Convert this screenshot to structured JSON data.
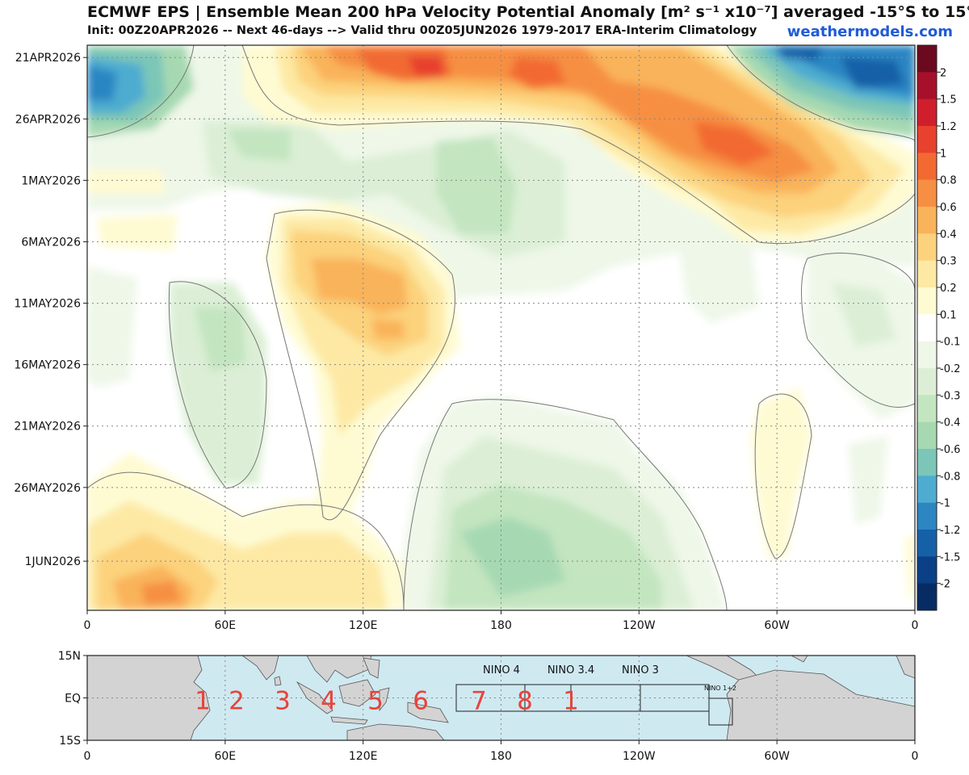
{
  "header": {
    "title": "ECMWF EPS | Ensemble Mean 200 hPa Velocity Potential Anomaly [m² s⁻¹ x10⁻⁷] averaged -15°S to 15°N",
    "subtitle": "Init: 00Z20APR2026 -- Next 46-days --> Valid thru 00Z05JUN2026 1979-2017 ERA-Interim Climatology",
    "site": "weathermodels.com"
  },
  "chart_data": [
    {
      "type": "heatmap",
      "title": "ECMWF EPS | Ensemble Mean 200 hPa Velocity Potential Anomaly [m² s⁻¹ x10⁻⁷] averaged -15°S to 15°N",
      "subtitle": "Init: 00Z20APR2026 -- Next 46-days --> Valid thru 00Z05JUN2026 1979-2017 ERA-Interim Climatology",
      "x_axis": {
        "ticks": [
          "0",
          "60E",
          "120E",
          "180",
          "120W",
          "60W",
          "0"
        ],
        "lon_values": [
          0,
          60,
          120,
          180,
          240,
          300,
          360
        ],
        "range": [
          0,
          360
        ]
      },
      "y_axis": {
        "ticks": [
          "21APR2026",
          "26APR2026",
          "1MAY2026",
          "6MAY2026",
          "11MAY2026",
          "16MAY2026",
          "21MAY2026",
          "26MAY2026",
          "1JUN2026"
        ],
        "dates": [
          "2026-04-21",
          "2026-04-26",
          "2026-05-01",
          "2026-05-06",
          "2026-05-11",
          "2026-05-16",
          "2026-05-21",
          "2026-05-26",
          "2026-06-01"
        ],
        "range": [
          "2026-04-20",
          "2026-06-05"
        ],
        "direction": "time increases downward"
      },
      "grid": true,
      "colorbar": {
        "labels": [
          "2",
          "1.5",
          "1.2",
          "1",
          "0.8",
          "0.6",
          "0.4",
          "0.3",
          "0.2",
          "0.1",
          "-0.1",
          "-0.2",
          "-0.3",
          "-0.4",
          "-0.6",
          "-0.8",
          "-1",
          "-1.2",
          "-1.5",
          "-2"
        ],
        "colors": [
          "#6b0a1f",
          "#a6102a",
          "#cf1f2c",
          "#e8412d",
          "#f26a32",
          "#f68f43",
          "#f9b35a",
          "#fcd27c",
          "#fde9a4",
          "#fefbd3",
          "#ffffff",
          "#eef7e8",
          "#dcefd6",
          "#c3e5c0",
          "#a6d9b2",
          "#7cc6b8",
          "#4eacd0",
          "#2b86c2",
          "#1660a8",
          "#0b3f86",
          "#072b63"
        ]
      },
      "features": [
        {
          "name": "positive anomaly",
          "lon_range": [
            60,
            290
          ],
          "dates": [
            "2026-04-20",
            "2026-05-06"
          ],
          "peak": 1.0
        },
        {
          "name": "negative anomaly",
          "lon_range": [
            0,
            15
          ],
          "dates": [
            "2026-04-20",
            "2026-04-27"
          ],
          "peak": -1.2
        },
        {
          "name": "negative anomaly",
          "lon_range": [
            295,
            360
          ],
          "dates": [
            "2026-04-20",
            "2026-04-27"
          ],
          "peak": -1.5
        },
        {
          "name": "positive anomaly",
          "lon_range": [
            75,
            130
          ],
          "dates": [
            "2026-05-03",
            "2026-05-24"
          ],
          "peak": 0.6
        },
        {
          "name": "positive anomaly",
          "lon_range": [
            0,
            110
          ],
          "dates": [
            "2026-05-24",
            "2026-06-05"
          ],
          "peak": 0.6
        },
        {
          "name": "negative anomaly",
          "lon_range": [
            155,
            260
          ],
          "dates": [
            "2026-05-16",
            "2026-06-05"
          ],
          "peak": -0.4
        },
        {
          "name": "positive anomaly",
          "lon_range": [
            290,
            315
          ],
          "dates": [
            "2026-05-16",
            "2026-06-02"
          ],
          "peak": 0.1
        }
      ]
    },
    {
      "type": "map",
      "y_axis": {
        "ticks": [
          "15N",
          "EQ",
          "15S"
        ]
      },
      "x_axis": {
        "ticks": [
          "0",
          "60E",
          "120E",
          "180",
          "120W",
          "60W",
          "0"
        ]
      },
      "mjo_phases": [
        "1",
        "2",
        "3",
        "4",
        "5",
        "6",
        "7",
        "8",
        "1"
      ],
      "nino_regions": [
        "NINO 4",
        "NINO 3.4",
        "NINO 3",
        "NINO 1+2"
      ]
    }
  ]
}
